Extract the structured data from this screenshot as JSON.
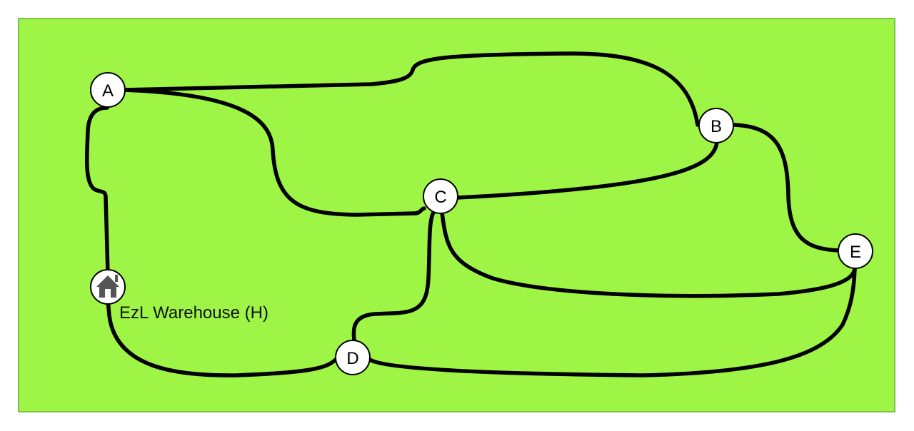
{
  "colors": {
    "field": "#9ef545",
    "field_border": "#7dc04a",
    "road": "#000000",
    "node_fill": "#ffffff",
    "node_stroke": "#000000",
    "home_icon": "#555555"
  },
  "warehouse": {
    "label": "EzL Warehouse (H)",
    "icon": "house-icon"
  },
  "nodes": [
    {
      "id": "A",
      "label": "A"
    },
    {
      "id": "B",
      "label": "B"
    },
    {
      "id": "C",
      "label": "C"
    },
    {
      "id": "D",
      "label": "D"
    },
    {
      "id": "E",
      "label": "E"
    }
  ],
  "roads": [
    {
      "from": "H",
      "to": "A"
    },
    {
      "from": "A",
      "to": "B"
    },
    {
      "from": "A",
      "to": "C"
    },
    {
      "from": "B",
      "to": "C"
    },
    {
      "from": "B",
      "to": "E"
    },
    {
      "from": "C",
      "to": "E"
    },
    {
      "from": "C",
      "to": "D"
    },
    {
      "from": "H",
      "to": "D"
    },
    {
      "from": "D",
      "to": "E"
    }
  ]
}
